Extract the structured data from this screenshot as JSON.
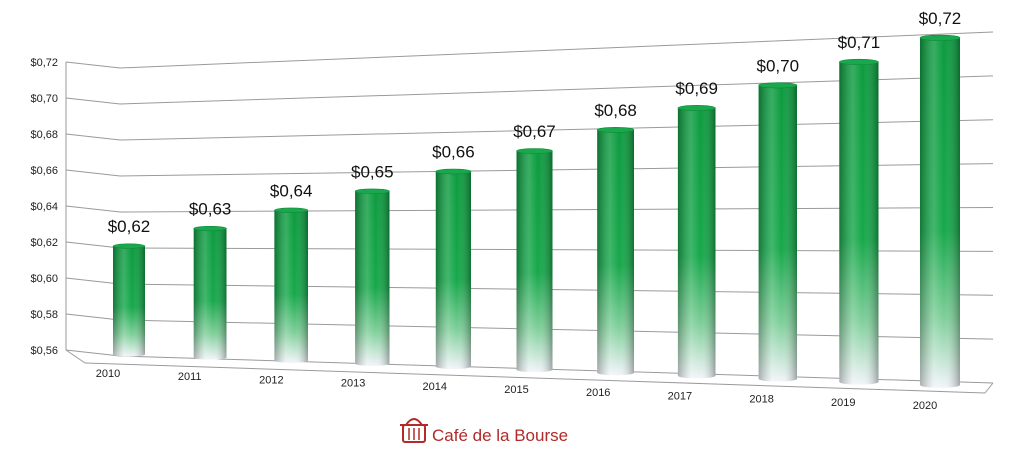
{
  "chart_data": {
    "type": "bar",
    "categories": [
      "2010",
      "2011",
      "2012",
      "2013",
      "2014",
      "2015",
      "2016",
      "2017",
      "2018",
      "2019",
      "2020"
    ],
    "values": [
      0.62,
      0.63,
      0.64,
      0.65,
      0.66,
      0.67,
      0.68,
      0.69,
      0.7,
      0.71,
      0.72
    ],
    "data_labels": [
      "$0,62",
      "$0,63",
      "$0,64",
      "$0,65",
      "$0,66",
      "$0,67",
      "$0,68",
      "$0,69",
      "$0,70",
      "$0,71",
      "$0,72"
    ],
    "ylim": [
      0.56,
      0.72
    ],
    "yticks": [
      0.56,
      0.58,
      0.6,
      0.62,
      0.64,
      0.66,
      0.68,
      0.7,
      0.72
    ],
    "ytick_labels": [
      "$0,56",
      "$0,58",
      "$0,60",
      "$0,62",
      "$0,64",
      "$0,66",
      "$0,68",
      "$0,70",
      "$0,72"
    ],
    "title": "",
    "xlabel": "",
    "ylabel": "",
    "grid": true,
    "style": "3d-cylinder",
    "bar_color_top": "#0a9a3c",
    "bar_color_bottom": "#f2f4fa",
    "grid_color": "#9a9a9a"
  },
  "brand": {
    "name": "Café de la Bourse",
    "icon": "basket-icon",
    "color": "#b22a2a"
  }
}
